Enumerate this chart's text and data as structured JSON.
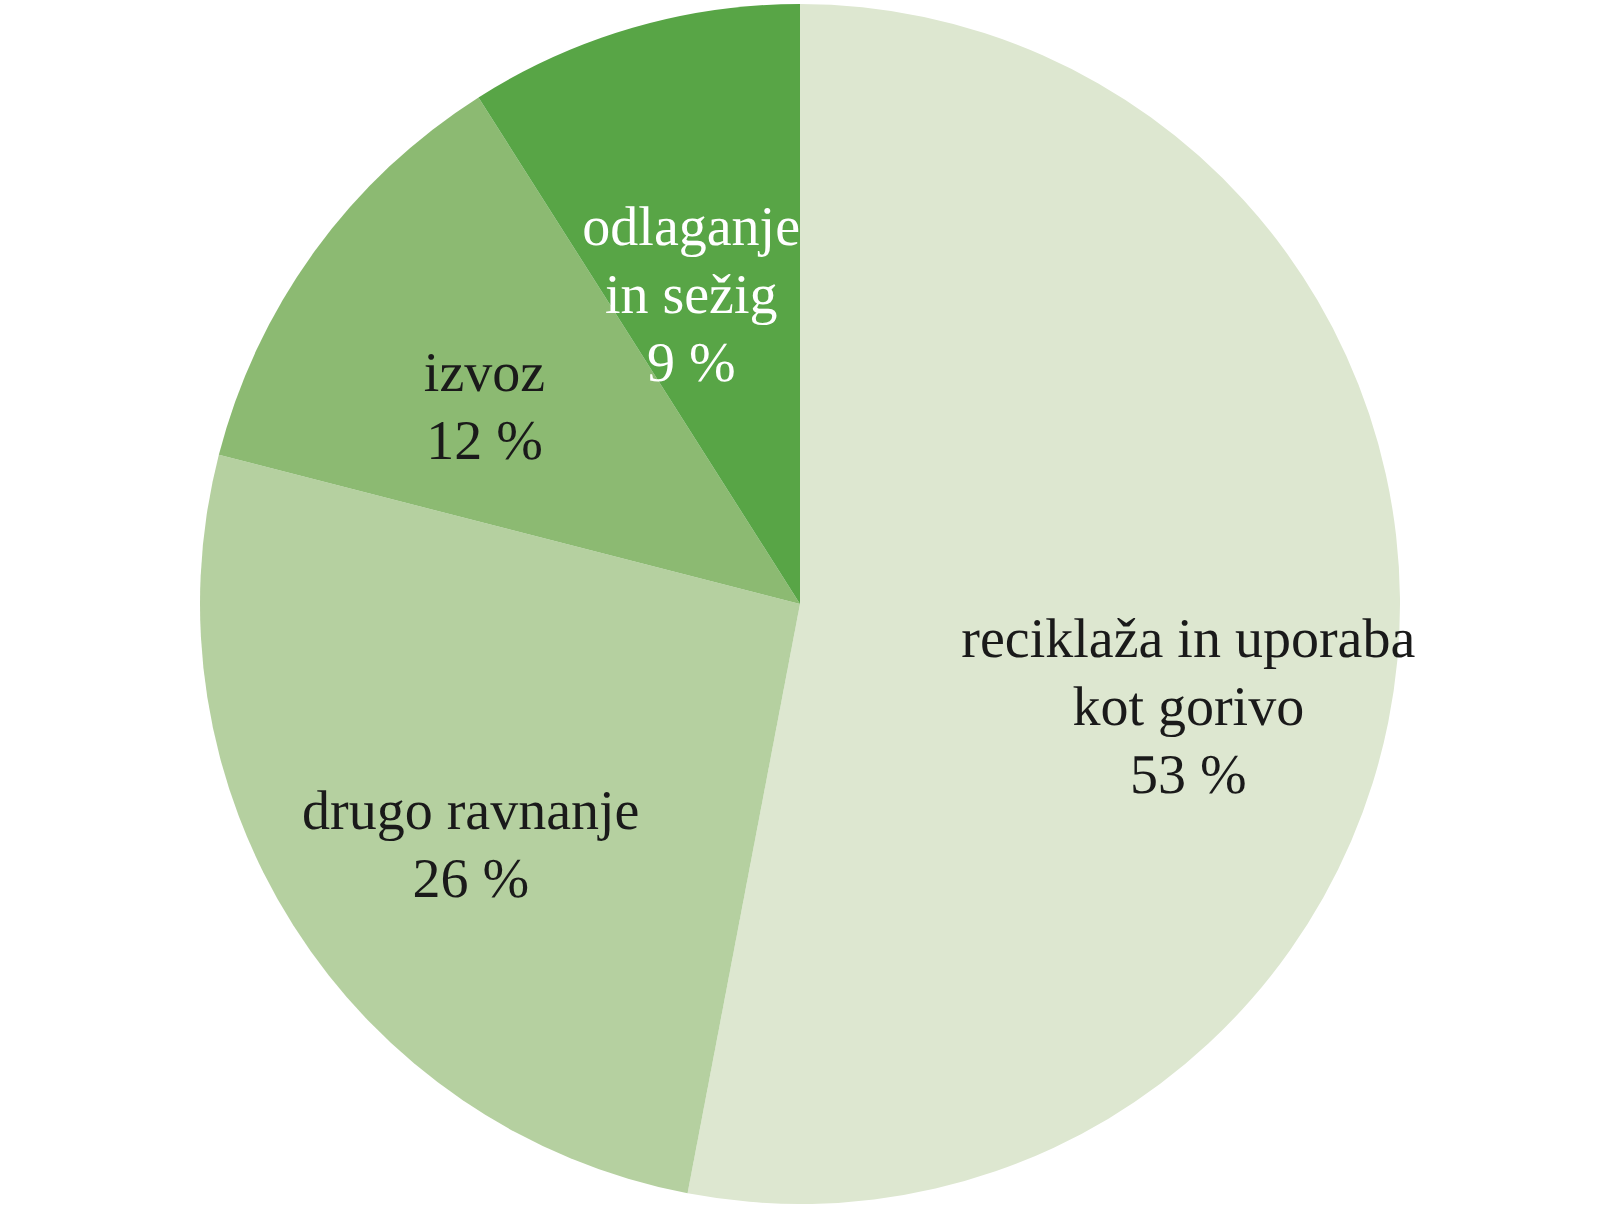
{
  "chart_data": {
    "type": "pie",
    "categories": [
      "reciklaža in uporaba kot gorivo",
      "drugo ravnanje",
      "izvoz",
      "odlaganje in sežig"
    ],
    "values": [
      53,
      26,
      12,
      9
    ],
    "value_labels": [
      "53 %",
      "26 %",
      "12 %",
      "9 %"
    ],
    "colors": [
      "#dde7d0",
      "#b5d0a0",
      "#8cba72",
      "#58a546"
    ]
  }
}
